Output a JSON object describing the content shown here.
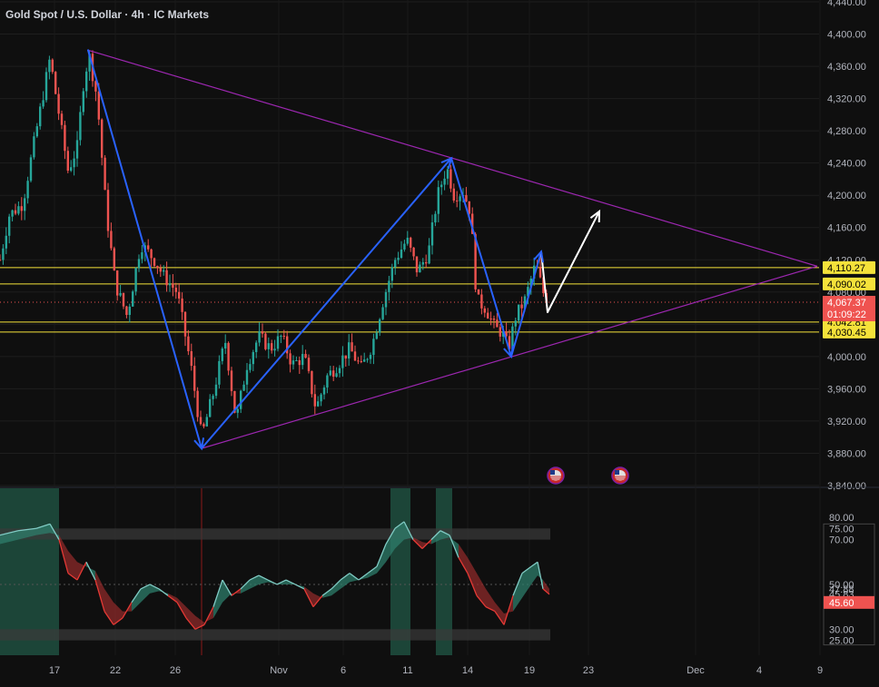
{
  "header": {
    "title": "Gold Spot / U.S. Dollar · 4h · IC Markets"
  },
  "colors": {
    "background": "#0f0f0f",
    "up": "#26a69a",
    "down": "#ef5350",
    "wave": "#2962ff",
    "triangle": "#9c27b0",
    "level": "#f5e23a",
    "projection": "#ffffff",
    "oscillator_up": "#4db6ac",
    "oscillator_down": "#e53935"
  },
  "chart_data": [
    {
      "type": "candlestick",
      "title": "Gold Spot / U.S. Dollar · 4h · IC Markets",
      "ylim": [
        3840,
        4440
      ],
      "y_ticks": [
        "4,440.00",
        "4,400.00",
        "4,360.00",
        "4,320.00",
        "4,280.00",
        "4,240.00",
        "4,200.00",
        "4,160.00",
        "4,120.00",
        "4,080.00",
        "4,040.00",
        "4,000.00",
        "3,960.00",
        "3,920.00",
        "3,880.00",
        "3,840.00"
      ],
      "x_ticks": [
        "17",
        "22",
        "26",
        "Nov",
        "6",
        "11",
        "14",
        "19",
        "23",
        "Dec",
        "4",
        "9"
      ],
      "last_price": {
        "label": "4,067.37",
        "value": 4067.37,
        "countdown": "01:09:22"
      },
      "levels": [
        {
          "label": "4,110.27",
          "value": 4110.27
        },
        {
          "label": "4,090.02",
          "value": 4090.02
        },
        {
          "label": "4,042.81",
          "value": 4042.81
        },
        {
          "label": "4,030.45",
          "value": 4030.45
        }
      ],
      "price_path": [
        {
          "t": 0,
          "p": 4120
        },
        {
          "t": 10,
          "p": 4175
        },
        {
          "t": 25,
          "p": 4190
        },
        {
          "t": 40,
          "p": 4280
        },
        {
          "t": 55,
          "p": 4370
        },
        {
          "t": 65,
          "p": 4300
        },
        {
          "t": 75,
          "p": 4230
        },
        {
          "t": 85,
          "p": 4260
        },
        {
          "t": 92,
          "p": 4340
        },
        {
          "t": 98,
          "p": 4375
        },
        {
          "t": 107,
          "p": 4320
        },
        {
          "t": 117,
          "p": 4180
        },
        {
          "t": 127,
          "p": 4090
        },
        {
          "t": 140,
          "p": 4050
        },
        {
          "t": 155,
          "p": 4140
        },
        {
          "t": 170,
          "p": 4120
        },
        {
          "t": 180,
          "p": 4100
        },
        {
          "t": 195,
          "p": 4080
        },
        {
          "t": 210,
          "p": 3990
        },
        {
          "t": 222,
          "p": 3900
        },
        {
          "t": 235,
          "p": 3955
        },
        {
          "t": 248,
          "p": 4020
        },
        {
          "t": 260,
          "p": 3920
        },
        {
          "t": 272,
          "p": 3990
        },
        {
          "t": 285,
          "p": 4025
        },
        {
          "t": 298,
          "p": 4010
        },
        {
          "t": 310,
          "p": 4025
        },
        {
          "t": 322,
          "p": 3990
        },
        {
          "t": 335,
          "p": 4000
        },
        {
          "t": 348,
          "p": 3935
        },
        {
          "t": 360,
          "p": 3975
        },
        {
          "t": 372,
          "p": 3990
        },
        {
          "t": 385,
          "p": 4010
        },
        {
          "t": 398,
          "p": 3985
        },
        {
          "t": 410,
          "p": 4015
        },
        {
          "t": 422,
          "p": 4070
        },
        {
          "t": 435,
          "p": 4120
        },
        {
          "t": 448,
          "p": 4145
        },
        {
          "t": 460,
          "p": 4105
        },
        {
          "t": 472,
          "p": 4130
        },
        {
          "t": 482,
          "p": 4200
        },
        {
          "t": 492,
          "p": 4235
        },
        {
          "t": 500,
          "p": 4200
        },
        {
          "t": 510,
          "p": 4205
        },
        {
          "t": 518,
          "p": 4180
        },
        {
          "t": 525,
          "p": 4070
        },
        {
          "t": 535,
          "p": 4060
        },
        {
          "t": 545,
          "p": 4035
        },
        {
          "t": 553,
          "p": 4030
        },
        {
          "t": 560,
          "p": 4010
        },
        {
          "t": 568,
          "p": 4050
        },
        {
          "t": 578,
          "p": 4070
        },
        {
          "t": 590,
          "p": 4115
        },
        {
          "t": 598,
          "p": 4080
        },
        {
          "t": 605,
          "p": 4067
        }
      ],
      "triangle": {
        "upper": [
          {
            "t": 97,
            "p": 4380
          },
          {
            "t": 900,
            "p": 4112
          }
        ],
        "lower": [
          {
            "t": 222,
            "p": 3886
          },
          {
            "t": 900,
            "p": 4112
          }
        ]
      },
      "wave": [
        {
          "t": 97,
          "p": 4380
        },
        {
          "t": 222,
          "p": 3886
        },
        {
          "t": 497,
          "p": 4246
        },
        {
          "t": 563,
          "p": 4000
        },
        {
          "t": 596,
          "p": 4130
        },
        {
          "t": 603,
          "p": 4055
        },
        {
          "t": 660,
          "p": 4180
        }
      ],
      "event_icons": [
        {
          "t": 612
        },
        {
          "t": 683
        }
      ]
    },
    {
      "type": "area",
      "title": "",
      "ylim": [
        20,
        82
      ],
      "y_ticks": [
        "80.00",
        "75.00",
        "70.00",
        "50.00",
        "47.88",
        "45.83",
        "30.00",
        "25.00"
      ],
      "current": {
        "label": "45.60",
        "value": 45.6
      },
      "bands": [
        {
          "from": 70,
          "to": 75
        },
        {
          "from": 25,
          "to": 30
        }
      ],
      "midline": 50,
      "highlights": [
        {
          "from": 0,
          "to": 65
        },
        {
          "from": 430,
          "to": 452
        },
        {
          "from": 480,
          "to": 498
        }
      ],
      "red_marker": 222,
      "fast": [
        {
          "t": 0,
          "v": 72
        },
        {
          "t": 20,
          "v": 74
        },
        {
          "t": 40,
          "v": 75
        },
        {
          "t": 55,
          "v": 77
        },
        {
          "t": 65,
          "v": 70
        },
        {
          "t": 75,
          "v": 55
        },
        {
          "t": 85,
          "v": 52
        },
        {
          "t": 95,
          "v": 60
        },
        {
          "t": 105,
          "v": 52
        },
        {
          "t": 115,
          "v": 38
        },
        {
          "t": 125,
          "v": 32
        },
        {
          "t": 135,
          "v": 35
        },
        {
          "t": 145,
          "v": 42
        },
        {
          "t": 155,
          "v": 48
        },
        {
          "t": 165,
          "v": 50
        },
        {
          "t": 175,
          "v": 48
        },
        {
          "t": 185,
          "v": 45
        },
        {
          "t": 195,
          "v": 42
        },
        {
          "t": 205,
          "v": 35
        },
        {
          "t": 215,
          "v": 30
        },
        {
          "t": 225,
          "v": 32
        },
        {
          "t": 235,
          "v": 40
        },
        {
          "t": 245,
          "v": 52
        },
        {
          "t": 255,
          "v": 45
        },
        {
          "t": 265,
          "v": 48
        },
        {
          "t": 275,
          "v": 52
        },
        {
          "t": 285,
          "v": 54
        },
        {
          "t": 295,
          "v": 52
        },
        {
          "t": 305,
          "v": 50
        },
        {
          "t": 315,
          "v": 52
        },
        {
          "t": 325,
          "v": 50
        },
        {
          "t": 335,
          "v": 48
        },
        {
          "t": 345,
          "v": 40
        },
        {
          "t": 355,
          "v": 45
        },
        {
          "t": 365,
          "v": 48
        },
        {
          "t": 375,
          "v": 52
        },
        {
          "t": 385,
          "v": 55
        },
        {
          "t": 395,
          "v": 52
        },
        {
          "t": 405,
          "v": 55
        },
        {
          "t": 415,
          "v": 58
        },
        {
          "t": 425,
          "v": 68
        },
        {
          "t": 435,
          "v": 75
        },
        {
          "t": 445,
          "v": 78
        },
        {
          "t": 455,
          "v": 70
        },
        {
          "t": 465,
          "v": 66
        },
        {
          "t": 475,
          "v": 70
        },
        {
          "t": 485,
          "v": 74
        },
        {
          "t": 495,
          "v": 72
        },
        {
          "t": 505,
          "v": 62
        },
        {
          "t": 515,
          "v": 55
        },
        {
          "t": 525,
          "v": 45
        },
        {
          "t": 535,
          "v": 40
        },
        {
          "t": 545,
          "v": 38
        },
        {
          "t": 555,
          "v": 32
        },
        {
          "t": 565,
          "v": 45
        },
        {
          "t": 575,
          "v": 55
        },
        {
          "t": 585,
          "v": 58
        },
        {
          "t": 592,
          "v": 60
        },
        {
          "t": 598,
          "v": 48
        },
        {
          "t": 605,
          "v": 45.6
        }
      ],
      "slow": [
        {
          "t": 0,
          "v": 68
        },
        {
          "t": 20,
          "v": 70
        },
        {
          "t": 40,
          "v": 72
        },
        {
          "t": 55,
          "v": 73
        },
        {
          "t": 65,
          "v": 72
        },
        {
          "t": 75,
          "v": 65
        },
        {
          "t": 85,
          "v": 60
        },
        {
          "t": 95,
          "v": 58
        },
        {
          "t": 105,
          "v": 56
        },
        {
          "t": 115,
          "v": 48
        },
        {
          "t": 125,
          "v": 42
        },
        {
          "t": 135,
          "v": 38
        },
        {
          "t": 145,
          "v": 38
        },
        {
          "t": 155,
          "v": 42
        },
        {
          "t": 165,
          "v": 46
        },
        {
          "t": 175,
          "v": 47
        },
        {
          "t": 185,
          "v": 46
        },
        {
          "t": 195,
          "v": 44
        },
        {
          "t": 205,
          "v": 40
        },
        {
          "t": 215,
          "v": 36
        },
        {
          "t": 225,
          "v": 33
        },
        {
          "t": 235,
          "v": 35
        },
        {
          "t": 245,
          "v": 42
        },
        {
          "t": 255,
          "v": 46
        },
        {
          "t": 265,
          "v": 46
        },
        {
          "t": 275,
          "v": 48
        },
        {
          "t": 285,
          "v": 50
        },
        {
          "t": 295,
          "v": 51
        },
        {
          "t": 305,
          "v": 50
        },
        {
          "t": 315,
          "v": 50
        },
        {
          "t": 325,
          "v": 50
        },
        {
          "t": 335,
          "v": 49
        },
        {
          "t": 345,
          "v": 46
        },
        {
          "t": 355,
          "v": 44
        },
        {
          "t": 365,
          "v": 45
        },
        {
          "t": 375,
          "v": 48
        },
        {
          "t": 385,
          "v": 51
        },
        {
          "t": 395,
          "v": 52
        },
        {
          "t": 405,
          "v": 53
        },
        {
          "t": 415,
          "v": 55
        },
        {
          "t": 425,
          "v": 60
        },
        {
          "t": 435,
          "v": 66
        },
        {
          "t": 445,
          "v": 70
        },
        {
          "t": 455,
          "v": 71
        },
        {
          "t": 465,
          "v": 69
        },
        {
          "t": 475,
          "v": 68
        },
        {
          "t": 485,
          "v": 70
        },
        {
          "t": 495,
          "v": 71
        },
        {
          "t": 505,
          "v": 68
        },
        {
          "t": 515,
          "v": 62
        },
        {
          "t": 525,
          "v": 55
        },
        {
          "t": 535,
          "v": 48
        },
        {
          "t": 545,
          "v": 42
        },
        {
          "t": 555,
          "v": 37
        },
        {
          "t": 565,
          "v": 38
        },
        {
          "t": 575,
          "v": 44
        },
        {
          "t": 585,
          "v": 50
        },
        {
          "t": 592,
          "v": 54
        },
        {
          "t": 598,
          "v": 52
        },
        {
          "t": 605,
          "v": 48
        }
      ]
    }
  ]
}
